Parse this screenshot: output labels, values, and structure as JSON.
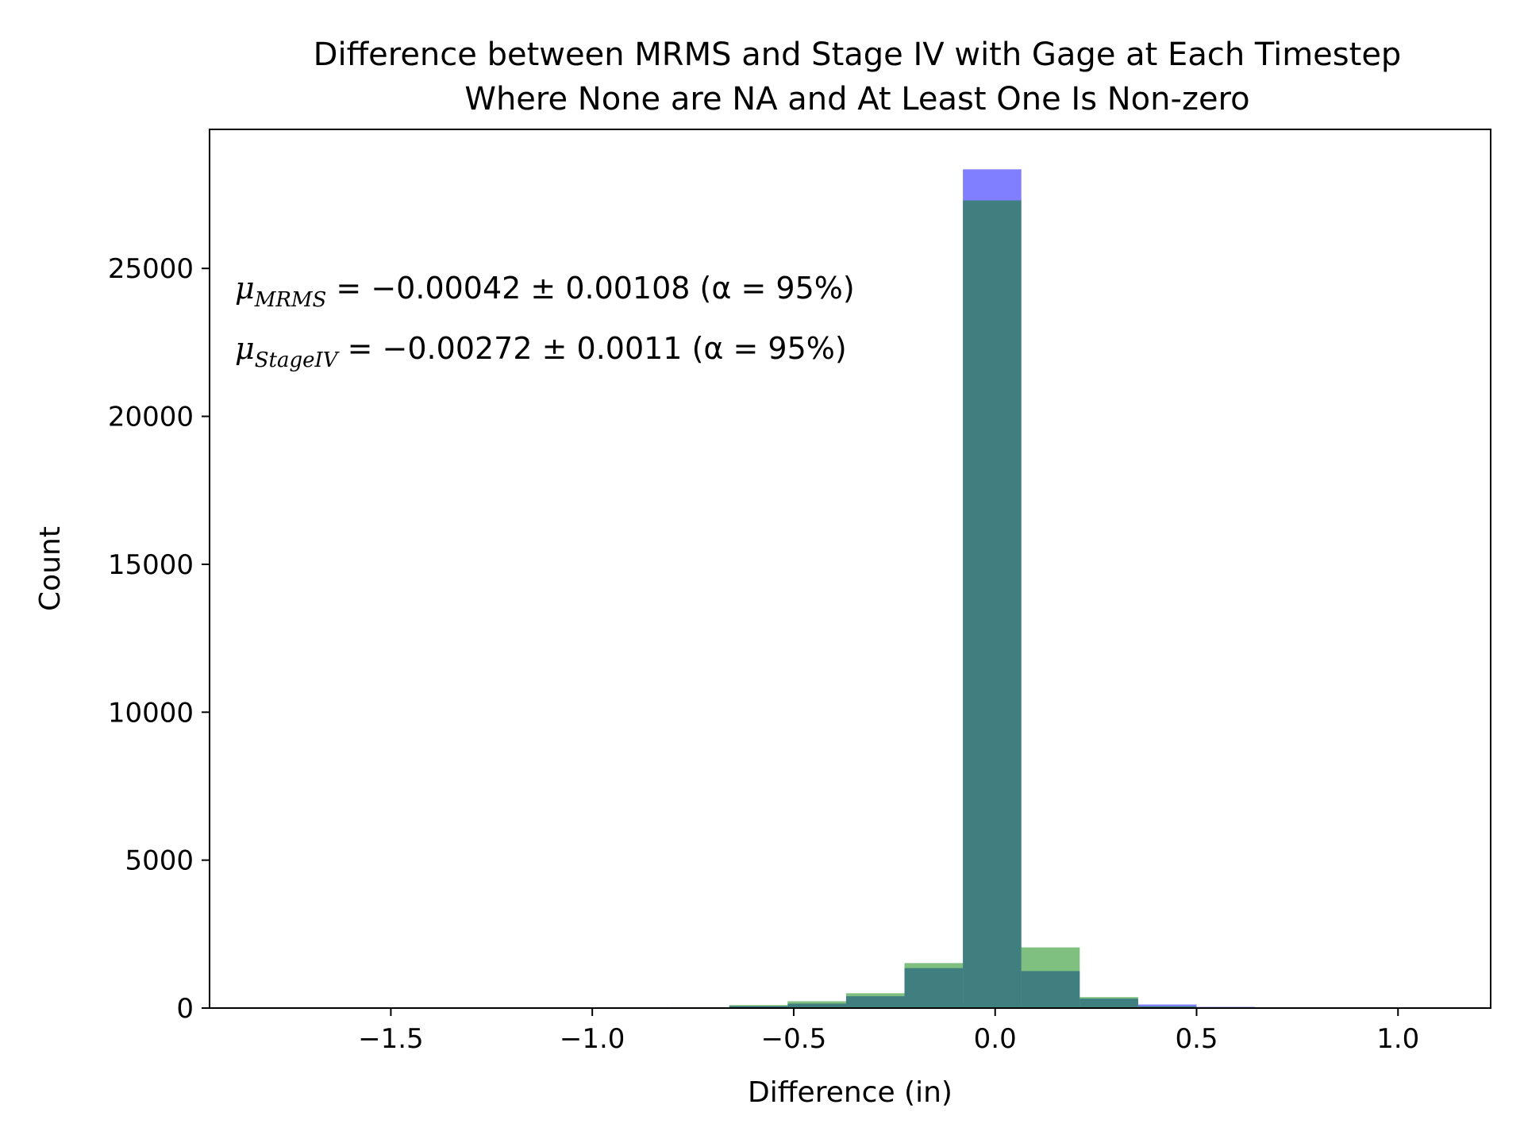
{
  "chart_data": {
    "type": "bar",
    "title": "Difference between MRMS and Stage IV with Gage at Each Timestep\nWhere None are NA and At Least One Is Non-zero",
    "xlabel": "Difference (in)",
    "ylabel": "Count",
    "xlim": [
      -1.95,
      1.23
    ],
    "ylim": [
      0,
      29700
    ],
    "xticks": [
      -1.5,
      -1.0,
      -0.5,
      0.0,
      0.5,
      1.0
    ],
    "xtick_labels": [
      "−1.5",
      "−1.0",
      "−0.5",
      "0.0",
      "0.5",
      "1.0"
    ],
    "yticks": [
      0,
      5000,
      10000,
      15000,
      20000,
      25000
    ],
    "ytick_labels": [
      "0",
      "5000",
      "10000",
      "15000",
      "20000",
      "25000"
    ],
    "bin_edges": [
      -0.805,
      -0.66,
      -0.515,
      -0.37,
      -0.225,
      -0.08,
      0.065,
      0.21,
      0.355,
      0.5,
      0.645
    ],
    "series": [
      {
        "color": "#0000ff",
        "opacity": 0.5,
        "values": [
          20,
          70,
          150,
          400,
          1350,
          28350,
          1250,
          320,
          120,
          40
        ]
      },
      {
        "color": "#008000",
        "opacity": 0.5,
        "values": [
          30,
          100,
          230,
          500,
          1520,
          27300,
          2050,
          370,
          60,
          20
        ]
      }
    ],
    "annotations": [
      {
        "mu": "μ",
        "sub": "MRMS",
        "text": " = −0.00042 ± 0.00108 (α = 95%)"
      },
      {
        "mu": "μ",
        "sub": "StageIV",
        "text": " = −0.00272 ± 0.0011 (α = 95%)"
      }
    ],
    "grid": false,
    "legend": "none"
  }
}
